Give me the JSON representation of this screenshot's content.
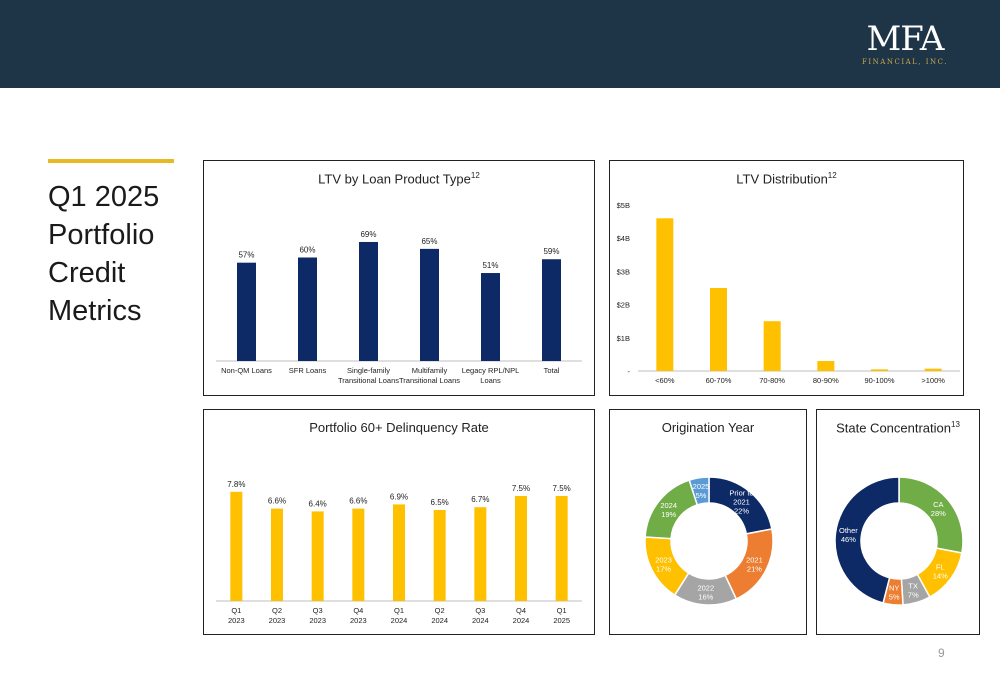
{
  "slide": {
    "logo_main": "MFA",
    "logo_sub": "FINANCIAL, INC.",
    "title_lines": [
      "Q1 2025",
      "Portfolio",
      "Credit",
      "Metrics"
    ],
    "page_number": "9"
  },
  "colors": {
    "header": "#1e3447",
    "navy": "#0e2a66",
    "gold": "#ffc000",
    "accent_bar": "#e8b923"
  },
  "chart_data": [
    {
      "id": "ltv-by-product",
      "type": "bar",
      "title": "LTV by Loan Product Type",
      "title_sup": "12",
      "categories": [
        [
          "Non-QM Loans"
        ],
        [
          "SFR Loans"
        ],
        [
          "Single-family",
          "Transitional Loans"
        ],
        [
          "Multifamily",
          "Transitional Loans"
        ],
        [
          "Legacy RPL/NPL",
          "Loans"
        ],
        [
          "Total"
        ]
      ],
      "values": [
        57,
        60,
        69,
        65,
        51,
        59
      ],
      "labels": [
        "57%",
        "60%",
        "69%",
        "65%",
        "51%",
        "59%"
      ],
      "ylim": [
        0,
        80
      ],
      "color": "#0e2a66",
      "grid": false
    },
    {
      "id": "ltv-distribution",
      "type": "bar",
      "title": "LTV Distribution",
      "title_sup": "12",
      "categories": [
        [
          "<60%"
        ],
        [
          "60-70%"
        ],
        [
          "70-80%"
        ],
        [
          "80-90%"
        ],
        [
          "90-100%"
        ],
        [
          ">100%"
        ]
      ],
      "values": [
        4.6,
        2.5,
        1.5,
        0.3,
        0.05,
        0.07
      ],
      "yticks": [
        0,
        1,
        2,
        3,
        4,
        5
      ],
      "ytick_labels": [
        "-",
        "$1B",
        "$2B",
        "$3B",
        "$4B",
        "$5B"
      ],
      "ylim": [
        0,
        5
      ],
      "color": "#ffc000",
      "grid": false
    },
    {
      "id": "delinquency",
      "type": "bar",
      "title": "Portfolio 60+ Delinquency Rate",
      "title_sup": "",
      "categories": [
        [
          "Q1",
          "2023"
        ],
        [
          "Q2",
          "2023"
        ],
        [
          "Q3",
          "2023"
        ],
        [
          "Q4",
          "2023"
        ],
        [
          "Q1",
          "2024"
        ],
        [
          "Q2",
          "2024"
        ],
        [
          "Q3",
          "2024"
        ],
        [
          "Q4",
          "2024"
        ],
        [
          "Q1",
          "2025"
        ]
      ],
      "values": [
        7.8,
        6.6,
        6.4,
        6.6,
        6.9,
        6.5,
        6.7,
        7.5,
        7.5
      ],
      "labels": [
        "7.8%",
        "6.6%",
        "6.4%",
        "6.6%",
        "6.9%",
        "6.5%",
        "6.7%",
        "7.5%",
        "7.5%"
      ],
      "ylim": [
        0,
        9.5
      ],
      "color": "#ffc000",
      "grid": false
    },
    {
      "id": "origination-year",
      "type": "pie",
      "title": "Origination Year",
      "title_sup": "",
      "slices": [
        {
          "label": [
            "Prior to",
            "2021",
            "22%"
          ],
          "value": 22,
          "color": "#0e2a66",
          "text": "#ffffff"
        },
        {
          "label": [
            "2021",
            "21%"
          ],
          "value": 21,
          "color": "#ed7d31",
          "text": "#ffffff"
        },
        {
          "label": [
            "2022",
            "16%"
          ],
          "value": 16,
          "color": "#a5a5a5",
          "text": "#ffffff"
        },
        {
          "label": [
            "2023",
            "17%"
          ],
          "value": 17,
          "color": "#ffc000",
          "text": "#ffffff"
        },
        {
          "label": [
            "2024",
            "19%"
          ],
          "value": 19,
          "color": "#70ad47",
          "text": "#ffffff"
        },
        {
          "label": [
            "2025",
            "5%"
          ],
          "value": 5,
          "color": "#5b9bd5",
          "text": "#ffffff"
        }
      ]
    },
    {
      "id": "state-concentration",
      "type": "pie",
      "title": "State Concentration",
      "title_sup": "13",
      "slices": [
        {
          "label": [
            "CA",
            "28%"
          ],
          "value": 28,
          "color": "#70ad47",
          "text": "#ffffff"
        },
        {
          "label": [
            "FL",
            "14%"
          ],
          "value": 14,
          "color": "#ffc000",
          "text": "#ffffff"
        },
        {
          "label": [
            "TX",
            "7%"
          ],
          "value": 7,
          "color": "#a5a5a5",
          "text": "#ffffff"
        },
        {
          "label": [
            "NY",
            "5%"
          ],
          "value": 5,
          "color": "#ed7d31",
          "text": "#ffffff"
        },
        {
          "label": [
            "Other",
            "46%"
          ],
          "value": 46,
          "color": "#0e2a66",
          "text": "#ffffff"
        }
      ]
    }
  ]
}
